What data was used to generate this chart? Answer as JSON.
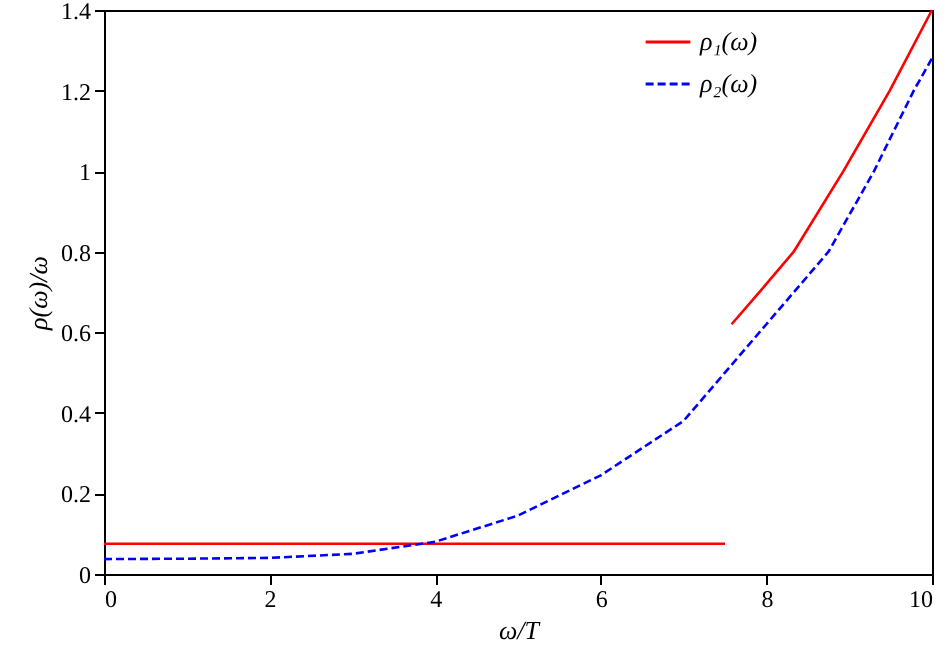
{
  "chart_data": {
    "type": "line",
    "xlabel": "ω/T",
    "ylabel": "ρ(ω)/ω",
    "xlim": [
      0,
      10
    ],
    "xticks": [
      0,
      2,
      4,
      6,
      8,
      10
    ],
    "ylim": [
      0,
      1.4
    ],
    "yticks": [
      0,
      0.2,
      0.4,
      0.6,
      0.8,
      1,
      1.2,
      1.4
    ],
    "grid": false,
    "legend": "top right",
    "series": [
      {
        "name": "ρ₁(ω)",
        "color": "#ff0000",
        "line_style": "solid",
        "x": [
          0,
          7.5
        ],
        "values": [
          0.075,
          0.075
        ]
      },
      {
        "name": "ρ₂(ω)",
        "color": "#0000ff",
        "line_style": "dashed",
        "x": [
          0,
          1,
          2,
          3,
          4,
          5,
          6,
          7,
          8,
          8.75,
          9.3,
          9.78,
          10
        ],
        "values": [
          0.037,
          0.038,
          0.04,
          0.05,
          0.08,
          0.145,
          0.245,
          0.38,
          0.62,
          0.8,
          1.0,
          1.2,
          1.28
        ]
      },
      {
        "color": "#ff0000",
        "line_style": "solid",
        "x": [
          7.58,
          8.0,
          8.33,
          8.93,
          9.49,
          10
        ],
        "values": [
          0.62,
          0.72,
          0.8,
          1.0,
          1.2,
          1.4
        ]
      }
    ]
  }
}
